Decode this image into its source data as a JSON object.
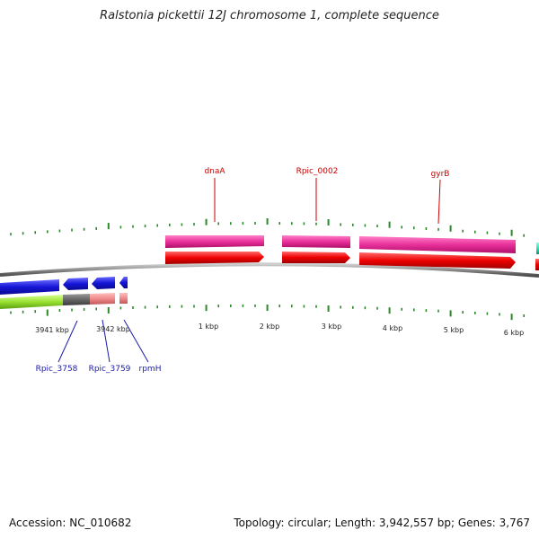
{
  "title": "Ralstonia pickettii 12J chromosome 1, complete sequence",
  "footer": {
    "accession": "Accession: NC_010682",
    "summary": "Topology: circular; Length: 3,942,557 bp; Genes: 3,767"
  },
  "colors": {
    "tick": "#2a8a2a",
    "backbone": "#8a8a8a",
    "top_label": "#cc0000",
    "bottom_label": "#1a1aa8",
    "magenta": "#e8309a",
    "red": "#ee0000",
    "blue": "#1515d8",
    "green": "#99e030",
    "dark_gray": "#666666",
    "salmon": "#f08a8a",
    "teal": "#33ddb0"
  },
  "scale_labels": [
    "3941 kbp",
    "3942 kbp",
    "1 kbp",
    "2 kbp",
    "3 kbp",
    "4 kbp",
    "5 kbp",
    "6 kbp"
  ],
  "gene_labels": {
    "top": [
      "dnaA",
      "Rpic_0002",
      "gyrB"
    ],
    "bottom": [
      "Rpic_3758",
      "Rpic_3759",
      "rpmH"
    ]
  }
}
